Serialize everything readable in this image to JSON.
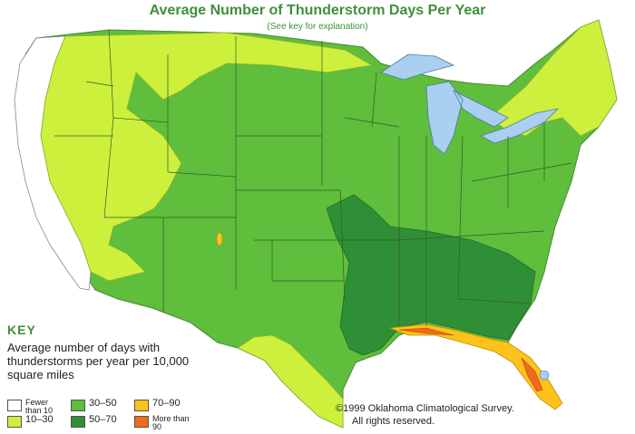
{
  "title": "Average Number of Thunderstorm Days Per Year",
  "subtitle": "(See key for explanation)",
  "key": {
    "heading": "KEY",
    "description": "Average number of days with thunderstorms per year per 10,000 square miles"
  },
  "legend": [
    {
      "label": "Fewer than 10",
      "color": "#ffffff"
    },
    {
      "label": "10–30",
      "color": "#ccf03c"
    },
    {
      "label": "30–50",
      "color": "#5fbe3c"
    },
    {
      "label": "50–70",
      "color": "#2f8f36"
    },
    {
      "label": "70–90",
      "color": "#ffc21a"
    },
    {
      "label": "More than 90",
      "color": "#f06a1c"
    }
  ],
  "credit": {
    "line1": "©1999 Oklahoma Climatological Survey.",
    "line2": "All rights reserved."
  },
  "colors": {
    "heading_green": "#3f8f3a",
    "lakes": "#a9d0f0"
  }
}
